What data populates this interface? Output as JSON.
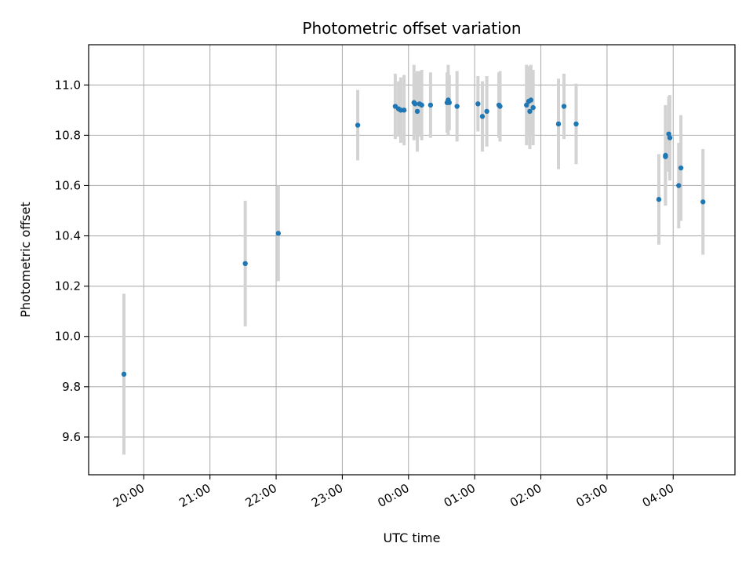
{
  "chart_data": {
    "type": "scatter",
    "title": "Photometric offset variation",
    "xlabel": "UTC time",
    "ylabel": "Photometric offset",
    "x_tick_labels": [
      "20:00",
      "21:00",
      "22:00",
      "23:00",
      "00:00",
      "01:00",
      "02:00",
      "03:00",
      "04:00"
    ],
    "y_tick_labels": [
      "9.6",
      "9.8",
      "10.0",
      "10.2",
      "10.4",
      "10.6",
      "10.8",
      "11.0"
    ],
    "y_ticks": [
      9.6,
      9.8,
      10.0,
      10.2,
      10.4,
      10.6,
      10.8,
      11.0
    ],
    "xlim": [
      "19:10",
      "04:56"
    ],
    "ylim": [
      9.45,
      11.16
    ],
    "grid": true,
    "colors": {
      "points": "#1f77b4",
      "errorbars": "#d3d3d3",
      "grid": "#b0b0b0"
    },
    "points": [
      {
        "x": "19:42",
        "y": 9.85,
        "err": 0.32
      },
      {
        "x": "21:32",
        "y": 10.29,
        "err": 0.25
      },
      {
        "x": "22:02",
        "y": 10.41,
        "err": 0.19
      },
      {
        "x": "23:14",
        "y": 10.84,
        "err": 0.14
      },
      {
        "x": "23:48",
        "y": 10.915,
        "err": 0.13
      },
      {
        "x": "23:51",
        "y": 10.905,
        "err": 0.11
      },
      {
        "x": "23:53",
        "y": 10.9,
        "err": 0.13
      },
      {
        "x": "23:56",
        "y": 10.9,
        "err": 0.14
      },
      {
        "x": "00:05",
        "y": 10.93,
        "err": 0.15
      },
      {
        "x": "00:06",
        "y": 10.925,
        "err": 0.12
      },
      {
        "x": "00:08",
        "y": 10.895,
        "err": 0.16
      },
      {
        "x": "00:10",
        "y": 10.925,
        "err": 0.13
      },
      {
        "x": "00:12",
        "y": 10.92,
        "err": 0.14
      },
      {
        "x": "00:20",
        "y": 10.92,
        "err": 0.13
      },
      {
        "x": "00:35",
        "y": 10.93,
        "err": 0.12
      },
      {
        "x": "00:36",
        "y": 10.94,
        "err": 0.14
      },
      {
        "x": "00:37",
        "y": 10.93,
        "err": 0.11
      },
      {
        "x": "00:44",
        "y": 10.915,
        "err": 0.14
      },
      {
        "x": "01:03",
        "y": 10.925,
        "err": 0.11
      },
      {
        "x": "01:07",
        "y": 10.875,
        "err": 0.14
      },
      {
        "x": "01:11",
        "y": 10.895,
        "err": 0.14
      },
      {
        "x": "01:22",
        "y": 10.92,
        "err": 0.13
      },
      {
        "x": "01:23",
        "y": 10.915,
        "err": 0.14
      },
      {
        "x": "01:47",
        "y": 10.92,
        "err": 0.16
      },
      {
        "x": "01:49",
        "y": 10.935,
        "err": 0.14
      },
      {
        "x": "01:50",
        "y": 10.895,
        "err": 0.15
      },
      {
        "x": "01:51",
        "y": 10.94,
        "err": 0.14
      },
      {
        "x": "01:53",
        "y": 10.91,
        "err": 0.15
      },
      {
        "x": "02:16",
        "y": 10.845,
        "err": 0.18
      },
      {
        "x": "02:21",
        "y": 10.915,
        "err": 0.13
      },
      {
        "x": "02:32",
        "y": 10.845,
        "err": 0.16
      },
      {
        "x": "03:47",
        "y": 10.545,
        "err": 0.18
      },
      {
        "x": "03:53",
        "y": 10.715,
        "err": 0.19
      },
      {
        "x": "03:53",
        "y": 10.72,
        "err": 0.2
      },
      {
        "x": "03:56",
        "y": 10.805,
        "err": 0.15
      },
      {
        "x": "03:57",
        "y": 10.79,
        "err": 0.17
      },
      {
        "x": "04:05",
        "y": 10.6,
        "err": 0.17
      },
      {
        "x": "04:07",
        "y": 10.67,
        "err": 0.21
      },
      {
        "x": "04:27",
        "y": 10.535,
        "err": 0.21
      }
    ]
  }
}
